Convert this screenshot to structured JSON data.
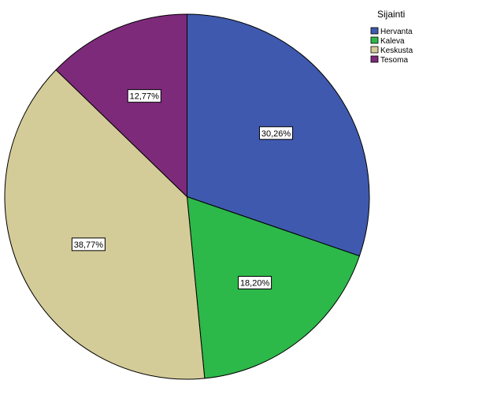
{
  "chart_data": {
    "type": "pie",
    "legend_title": "Sijainti",
    "legend_position": "top-right",
    "start": "12 o'clock",
    "direction": "clockwise",
    "slices": [
      {
        "label": "Hervanta",
        "value": 30.26,
        "display": "30,26%",
        "color": "#3F59AE"
      },
      {
        "label": "Kaleva",
        "value": 18.2,
        "display": "18,20%",
        "color": "#2DB84A"
      },
      {
        "label": "Keskusta",
        "value": 38.77,
        "display": "38,77%",
        "color": "#D4CC98"
      },
      {
        "label": "Tesoma",
        "value": 12.77,
        "display": "12,77%",
        "color": "#7E2A7B"
      }
    ]
  }
}
